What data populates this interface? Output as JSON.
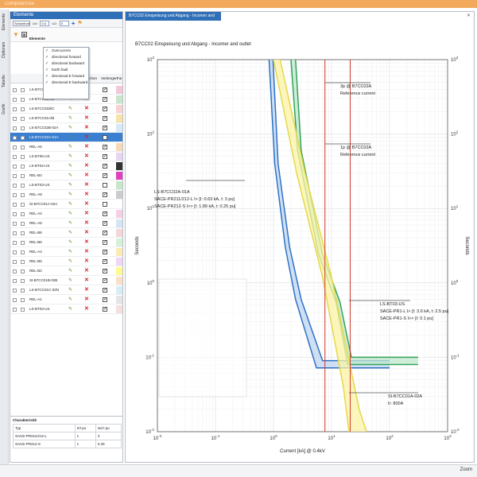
{
  "window": {
    "title": "ComputerUse"
  },
  "side_tabs": [
    "Elemente",
    "Optionen",
    "Tabelle",
    "Grafik"
  ],
  "elements_panel": {
    "title": "Elemente",
    "filter_select": "Schutzfunktionen",
    "lbl_field_label": "Lbl:",
    "lbl_field_value": "0.4",
    "u_label": "U2:",
    "u_value": "0",
    "section_label": "Elemente",
    "filter_options": [
      "Overcurrent",
      "directional forward",
      "directional backward",
      "Earth fault",
      "directional E forward",
      "directional E backward"
    ],
    "columns": {
      "loeschen": "Löschen",
      "verbergen": "Verbergen",
      "farbe": "Far"
    },
    "rows": [
      {
        "name": "LS-B7CC02A/B",
        "selected": false,
        "checked": true,
        "color": "#f4c7d8"
      },
      {
        "name": "LS-B7CC02A/B",
        "selected": false,
        "checked": true,
        "color": "#c8e6c9"
      },
      {
        "name": "LS-B7CC01B/C",
        "selected": false,
        "checked": true,
        "color": "#f8d2d2"
      },
      {
        "name": "LS-B7CC01A/B",
        "selected": false,
        "checked": true,
        "color": "#f7e3a8"
      },
      {
        "name": "LS-B7CC02B-02A",
        "selected": false,
        "checked": true,
        "color": "#d7e8f7"
      },
      {
        "name": "LS-B7CC02A-01A",
        "selected": true,
        "checked": false,
        "color": "#3a7fd0"
      },
      {
        "name": "REL-A5",
        "selected": false,
        "checked": true,
        "color": "#f9d9b5"
      },
      {
        "name": "LS-BT06-US",
        "selected": false,
        "checked": true,
        "color": "#e8d5f2"
      },
      {
        "name": "LS-BT04-US",
        "selected": false,
        "checked": true,
        "color": "#333333"
      },
      {
        "name": "REL-B4",
        "selected": false,
        "checked": true,
        "color": "#e040c0"
      },
      {
        "name": "LS-BT03-US",
        "selected": false,
        "checked": false,
        "color": "#c8e6c9"
      },
      {
        "name": "REL-A8",
        "selected": false,
        "checked": true,
        "color": "#cccccc"
      },
      {
        "name": "SI-B7CC01A-02A",
        "selected": false,
        "checked": false,
        "color": "#ffffff"
      },
      {
        "name": "REL-A2",
        "selected": false,
        "checked": true,
        "color": "#f6cfe3"
      },
      {
        "name": "REL-A6",
        "selected": false,
        "checked": true,
        "color": "#d5e5f5"
      },
      {
        "name": "REL-B8",
        "selected": false,
        "checked": true,
        "color": "#f5d6d6"
      },
      {
        "name": "REL-B6",
        "selected": false,
        "checked": true,
        "color": "#d6f0d6"
      },
      {
        "name": "REL-A4",
        "selected": false,
        "checked": true,
        "color": "#fde9b4"
      },
      {
        "name": "REL-B5",
        "selected": false,
        "checked": true,
        "color": "#f0d5f5"
      },
      {
        "name": "REL-B2",
        "selected": false,
        "checked": true,
        "color": "#fffa90"
      },
      {
        "name": "SI-B7CC01B-02B",
        "selected": false,
        "checked": true,
        "color": "#fbe0c8"
      },
      {
        "name": "LS-B7CC01C-02N",
        "selected": false,
        "checked": true,
        "color": "#d6eef2"
      },
      {
        "name": "REL-A1",
        "selected": false,
        "checked": true,
        "color": "#e5e5e5"
      },
      {
        "name": "LS-BT03-US",
        "selected": false,
        "checked": true,
        "color": "#f5e0e0"
      }
    ]
  },
  "characteristic": {
    "title": "Charakteristik",
    "headers": [
      "Typ",
      "Ir/I pu",
      "Isd t pu"
    ],
    "rows": [
      {
        "typ": "SACE-PR211/212-L",
        "a": "1",
        "b": "3"
      },
      {
        "typ": "SACE-PR212-S",
        "a": "1",
        "b": "0.25"
      }
    ]
  },
  "chart_panel": {
    "tab": "B7CC02 Einspeisung und Abgang - Incomer and outlet",
    "title": "B7CC02 Einspeisung und Abgang - Incomer and outlet"
  },
  "chart_data": {
    "type": "line",
    "title": "B7CC02 Einspeisung und Abgang - Incomer and outlet",
    "xlabel": "Current [kA] @ 0.4kV",
    "ylabel": "Seconds",
    "xscale": "log",
    "yscale": "log",
    "xlim": [
      0.01,
      1000
    ],
    "ylim": [
      0.01,
      1000
    ],
    "x_ticks": [
      "10^-2",
      "10^-1",
      "10^0",
      "10^1",
      "10^2",
      "10^3"
    ],
    "y_ticks": [
      "10^-2",
      "10^-1",
      "10^0",
      "10^1",
      "10^2",
      "10^3"
    ],
    "series": [
      {
        "name": "LS-B7CC02A-01A",
        "color": "#2f72c4",
        "fill": "#bfd6f2",
        "upper": [
          [
            0.98,
            1000
          ],
          [
            1.2,
            40
          ],
          [
            1.9,
            3
          ],
          [
            3.0,
            0.6
          ],
          [
            7.0,
            0.09
          ],
          [
            100,
            0.09
          ]
        ],
        "lower": [
          [
            0.84,
            1000
          ],
          [
            1.05,
            40
          ],
          [
            1.6,
            3
          ],
          [
            2.4,
            0.6
          ],
          [
            5.5,
            0.072
          ],
          [
            100,
            0.072
          ]
        ]
      },
      {
        "name": "LS-BT03-US",
        "color": "#34a35a",
        "fill": "#bfe8cc",
        "upper": [
          [
            2.4,
            1000
          ],
          [
            3.0,
            60
          ],
          [
            7.0,
            2.4
          ],
          [
            14,
            0.55
          ],
          [
            22,
            0.1
          ],
          [
            310,
            0.1
          ]
        ],
        "lower": [
          [
            2.0,
            1000
          ],
          [
            2.6,
            60
          ],
          [
            6.0,
            2.4
          ],
          [
            12,
            0.55
          ],
          [
            19,
            0.08
          ],
          [
            310,
            0.08
          ]
        ]
      },
      {
        "name": "SI-B7CC01A-02A",
        "color": "#e6d84a",
        "fill": "#fbf3a6",
        "upper": [
          [
            1.3,
            1000
          ],
          [
            3.5,
            30
          ],
          [
            10,
            1.2
          ],
          [
            30,
            0.02
          ],
          [
            40,
            0.01
          ]
        ],
        "lower": [
          [
            1.0,
            1000
          ],
          [
            2.5,
            30
          ],
          [
            7,
            1.2
          ],
          [
            16,
            0.04
          ],
          [
            20,
            0.01
          ]
        ]
      }
    ],
    "vlines": [
      {
        "x": 7.7,
        "color": "#d23a2a"
      },
      {
        "x": 21,
        "color": "#d23a2a"
      }
    ],
    "annotations": [
      {
        "lines": [
          "3p @ B7CC02A",
          "Reference current"
        ]
      },
      {
        "lines": [
          "1p @ B7CC02A",
          "Reference current"
        ]
      },
      {
        "lines": [
          "LS-B7CC02A-01A",
          "SACE-PR211/212-L I> [I: 0.63 kA, t: 3 pu]",
          "SACE-PR212-S I>> [I: 1.89 kA, t: 0.25 pu]"
        ]
      },
      {
        "lines": [
          "LS-BT03-US",
          "SACE-PR1-L I> [I: 3.6 kA, t: 2.5 pu]",
          "SACE-PR1-S I>> [I: 0.1 pu]"
        ]
      },
      {
        "lines": [
          "SI-B7CC01A-02A",
          "Ir: 800A"
        ]
      }
    ]
  },
  "status": {
    "zoom": "Zoom"
  }
}
